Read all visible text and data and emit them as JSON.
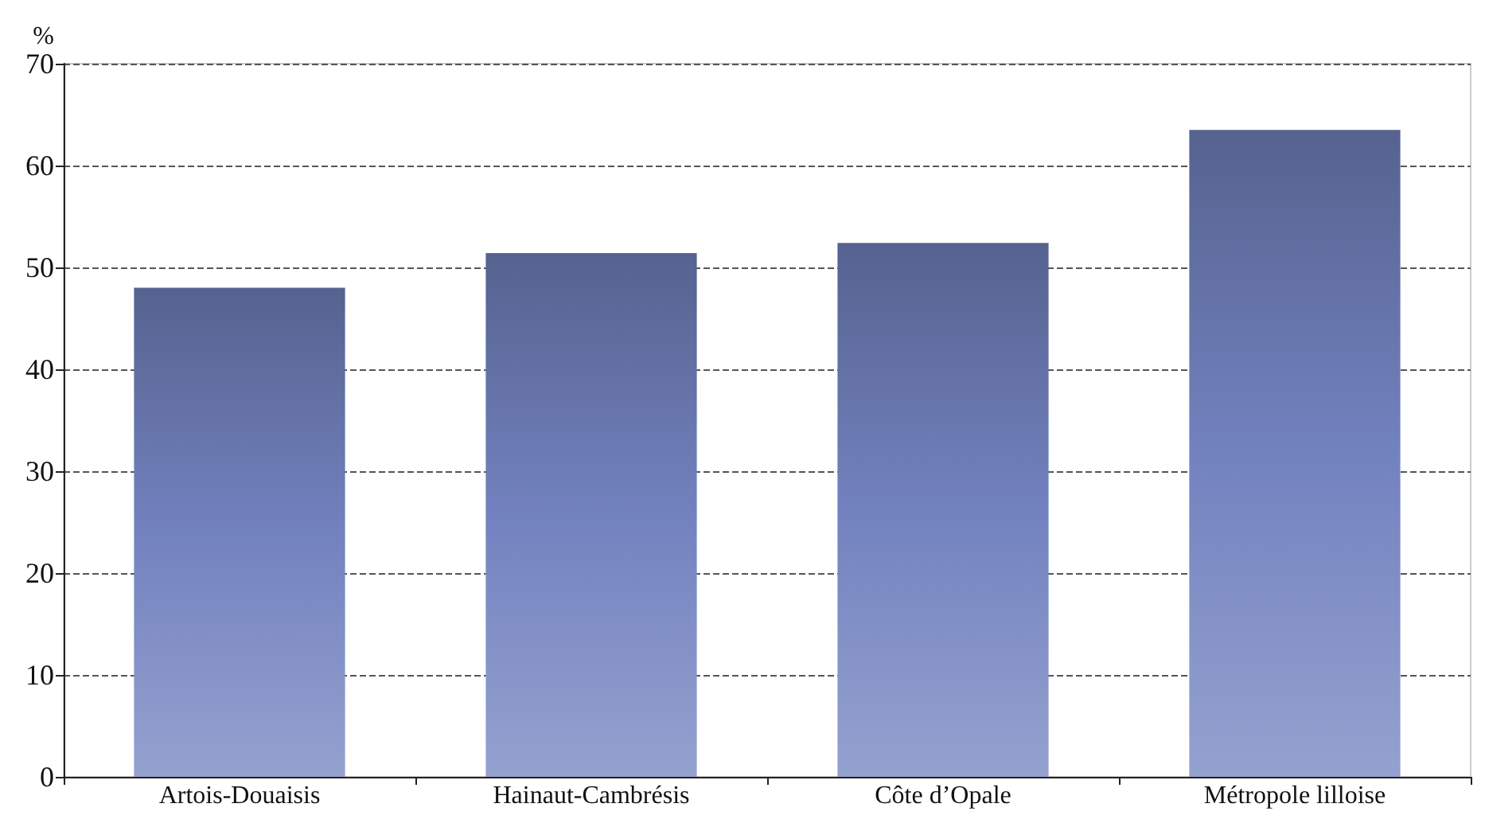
{
  "chart_data": {
    "type": "bar",
    "ylabel": "%",
    "categories": [
      "Artois-Douaisis",
      "Hainaut-Cambrésis",
      "Côte d’Opale",
      "Métropole lilloise"
    ],
    "values": [
      48.0,
      51.4,
      52.4,
      63.5
    ],
    "color": "#7282bf",
    "ylim": [
      0,
      70
    ],
    "yticks": [
      0,
      10,
      20,
      30,
      40,
      50,
      60,
      70
    ],
    "grid": "y"
  }
}
